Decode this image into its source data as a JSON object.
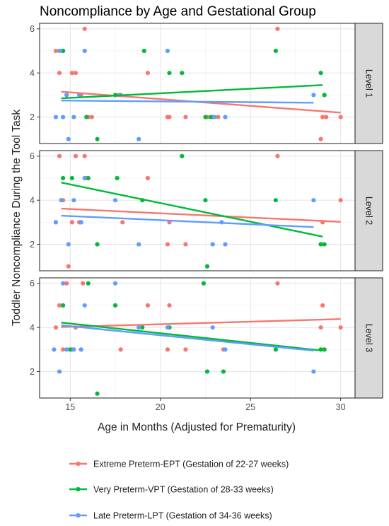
{
  "chart_data": {
    "type": "scatter",
    "title": "Noncompliance by Age and Gestational Group",
    "xlabel": "Age in Months (Adjusted for Prematurity)",
    "ylabel": "Toddler Noncompliance During the Tool Task",
    "xlim": [
      13.3,
      30.8
    ],
    "ylim": [
      0.8,
      6.25
    ],
    "x_ticks": [
      "15",
      "20",
      "25",
      "30"
    ],
    "y_ticks": [
      "2",
      "4",
      "6"
    ],
    "grid": true,
    "legend_position": "bottom",
    "facets": [
      "Level 1",
      "Level 2",
      "Level 3"
    ],
    "series": [
      {
        "name": "Extreme Preterm-EPT (Gestation of 22-27 weeks)",
        "color": "#F8766D",
        "fits": [
          {
            "x": [
              14.5,
              30.0
            ],
            "y": [
              3.15,
              2.2
            ]
          },
          {
            "x": [
              14.5,
              30.0
            ],
            "y": [
              3.62,
              3.02
            ]
          },
          {
            "x": [
              14.5,
              30.0
            ],
            "y": [
              4.02,
              4.38
            ]
          }
        ],
        "points": [
          [
            [
              14.2,
              5
            ],
            [
              14.4,
              4
            ],
            [
              14.6,
              5
            ],
            [
              14.8,
              3
            ],
            [
              15.1,
              4
            ],
            [
              15.3,
              4
            ],
            [
              15.6,
              3
            ],
            [
              15.8,
              6
            ],
            [
              16.0,
              2
            ],
            [
              16.2,
              2
            ],
            [
              17.7,
              3
            ],
            [
              19.3,
              4
            ],
            [
              20.4,
              2
            ],
            [
              20.5,
              2
            ],
            [
              21.4,
              2
            ],
            [
              22.6,
              2
            ],
            [
              22.9,
              2
            ],
            [
              23.2,
              2
            ],
            [
              26.5,
              6
            ],
            [
              28.9,
              1
            ],
            [
              29.0,
              2
            ],
            [
              29.2,
              2
            ],
            [
              30.0,
              2
            ]
          ],
          [
            [
              14.2,
              3
            ],
            [
              14.4,
              6
            ],
            [
              14.6,
              4
            ],
            [
              14.9,
              1
            ],
            [
              15.1,
              3
            ],
            [
              15.3,
              6
            ],
            [
              15.5,
              3
            ],
            [
              15.6,
              3
            ],
            [
              15.8,
              6
            ],
            [
              15.9,
              5
            ],
            [
              17.9,
              3
            ],
            [
              19.3,
              5
            ],
            [
              20.4,
              2
            ],
            [
              20.5,
              3
            ],
            [
              21.4,
              2
            ],
            [
              22.9,
              2
            ],
            [
              26.5,
              6
            ],
            [
              28.9,
              2
            ],
            [
              29.0,
              3
            ],
            [
              30.0,
              4
            ]
          ],
          [
            [
              14.2,
              4
            ],
            [
              14.4,
              5
            ],
            [
              14.6,
              3
            ],
            [
              14.8,
              6
            ],
            [
              15.1,
              3
            ],
            [
              15.3,
              4
            ],
            [
              15.6,
              3
            ],
            [
              15.7,
              6
            ],
            [
              17.8,
              3
            ],
            [
              19.3,
              5
            ],
            [
              20.4,
              3
            ],
            [
              20.5,
              5
            ],
            [
              21.4,
              3
            ],
            [
              23.5,
              3
            ],
            [
              26.5,
              6
            ],
            [
              28.9,
              4
            ],
            [
              29.0,
              5
            ],
            [
              30.0,
              4
            ]
          ]
        ]
      },
      {
        "name": "Very Preterm-VPT (Gestation of 28-33 weeks)",
        "color": "#00BA38",
        "fits": [
          {
            "x": [
              14.5,
              29.0
            ],
            "y": [
              2.85,
              3.45
            ]
          },
          {
            "x": [
              14.5,
              29.0
            ],
            "y": [
              4.8,
              2.35
            ]
          },
          {
            "x": [
              14.5,
              29.0
            ],
            "y": [
              4.22,
              2.95
            ]
          }
        ],
        "points": [
          [
            [
              14.6,
              5
            ],
            [
              14.8,
              3
            ],
            [
              15.9,
              2
            ],
            [
              16.5,
              1
            ],
            [
              17.5,
              3
            ],
            [
              19.1,
              5
            ],
            [
              20.5,
              4
            ],
            [
              21.2,
              4
            ],
            [
              22.5,
              2
            ],
            [
              22.8,
              2
            ],
            [
              26.4,
              5
            ],
            [
              28.9,
              4
            ],
            [
              29.1,
              3
            ]
          ],
          [
            [
              14.6,
              5
            ],
            [
              15.1,
              5
            ],
            [
              16.0,
              5
            ],
            [
              16.5,
              2
            ],
            [
              17.6,
              5
            ],
            [
              19.0,
              4
            ],
            [
              21.2,
              6
            ],
            [
              22.5,
              4
            ],
            [
              22.6,
              1
            ],
            [
              26.4,
              4
            ],
            [
              28.9,
              2
            ],
            [
              29.1,
              2
            ]
          ],
          [
            [
              14.6,
              5
            ],
            [
              15.0,
              3
            ],
            [
              16.0,
              6
            ],
            [
              16.5,
              1
            ],
            [
              17.5,
              5
            ],
            [
              19.0,
              4
            ],
            [
              20.5,
              4
            ],
            [
              22.4,
              6
            ],
            [
              22.6,
              2
            ],
            [
              23.5,
              2
            ],
            [
              26.4,
              3
            ],
            [
              28.9,
              3
            ],
            [
              29.1,
              3
            ]
          ]
        ]
      },
      {
        "name": "Late Preterm-LPT (Gestation of 34-36 weeks)",
        "color": "#619CFF",
        "fits": [
          {
            "x": [
              14.5,
              28.5
            ],
            "y": [
              2.75,
              2.65
            ]
          },
          {
            "x": [
              14.5,
              28.5
            ],
            "y": [
              3.3,
              2.78
            ]
          },
          {
            "x": [
              14.5,
              28.5
            ],
            "y": [
              4.1,
              2.95
            ]
          }
        ],
        "points": [
          [
            [
              14.2,
              2
            ],
            [
              14.4,
              5
            ],
            [
              14.6,
              2
            ],
            [
              14.8,
              3
            ],
            [
              14.9,
              1
            ],
            [
              15.2,
              2
            ],
            [
              15.5,
              3
            ],
            [
              15.8,
              5
            ],
            [
              17.8,
              3
            ],
            [
              18.8,
              1
            ],
            [
              20.4,
              5
            ],
            [
              23.0,
              2
            ],
            [
              23.6,
              2
            ],
            [
              28.5,
              3
            ]
          ],
          [
            [
              14.2,
              3
            ],
            [
              14.5,
              4
            ],
            [
              14.9,
              2
            ],
            [
              15.2,
              4
            ],
            [
              15.6,
              3
            ],
            [
              15.8,
              5
            ],
            [
              17.5,
              4
            ],
            [
              18.8,
              2
            ],
            [
              22.9,
              2
            ],
            [
              23.4,
              3
            ],
            [
              23.6,
              2
            ],
            [
              28.5,
              4
            ]
          ],
          [
            [
              14.1,
              3
            ],
            [
              14.4,
              2
            ],
            [
              14.6,
              6
            ],
            [
              14.8,
              3
            ],
            [
              15.2,
              3
            ],
            [
              15.6,
              3
            ],
            [
              15.8,
              5
            ],
            [
              17.5,
              6
            ],
            [
              18.8,
              4
            ],
            [
              20.4,
              4
            ],
            [
              22.9,
              4
            ],
            [
              23.6,
              3
            ],
            [
              28.5,
              2
            ]
          ]
        ]
      }
    ]
  }
}
